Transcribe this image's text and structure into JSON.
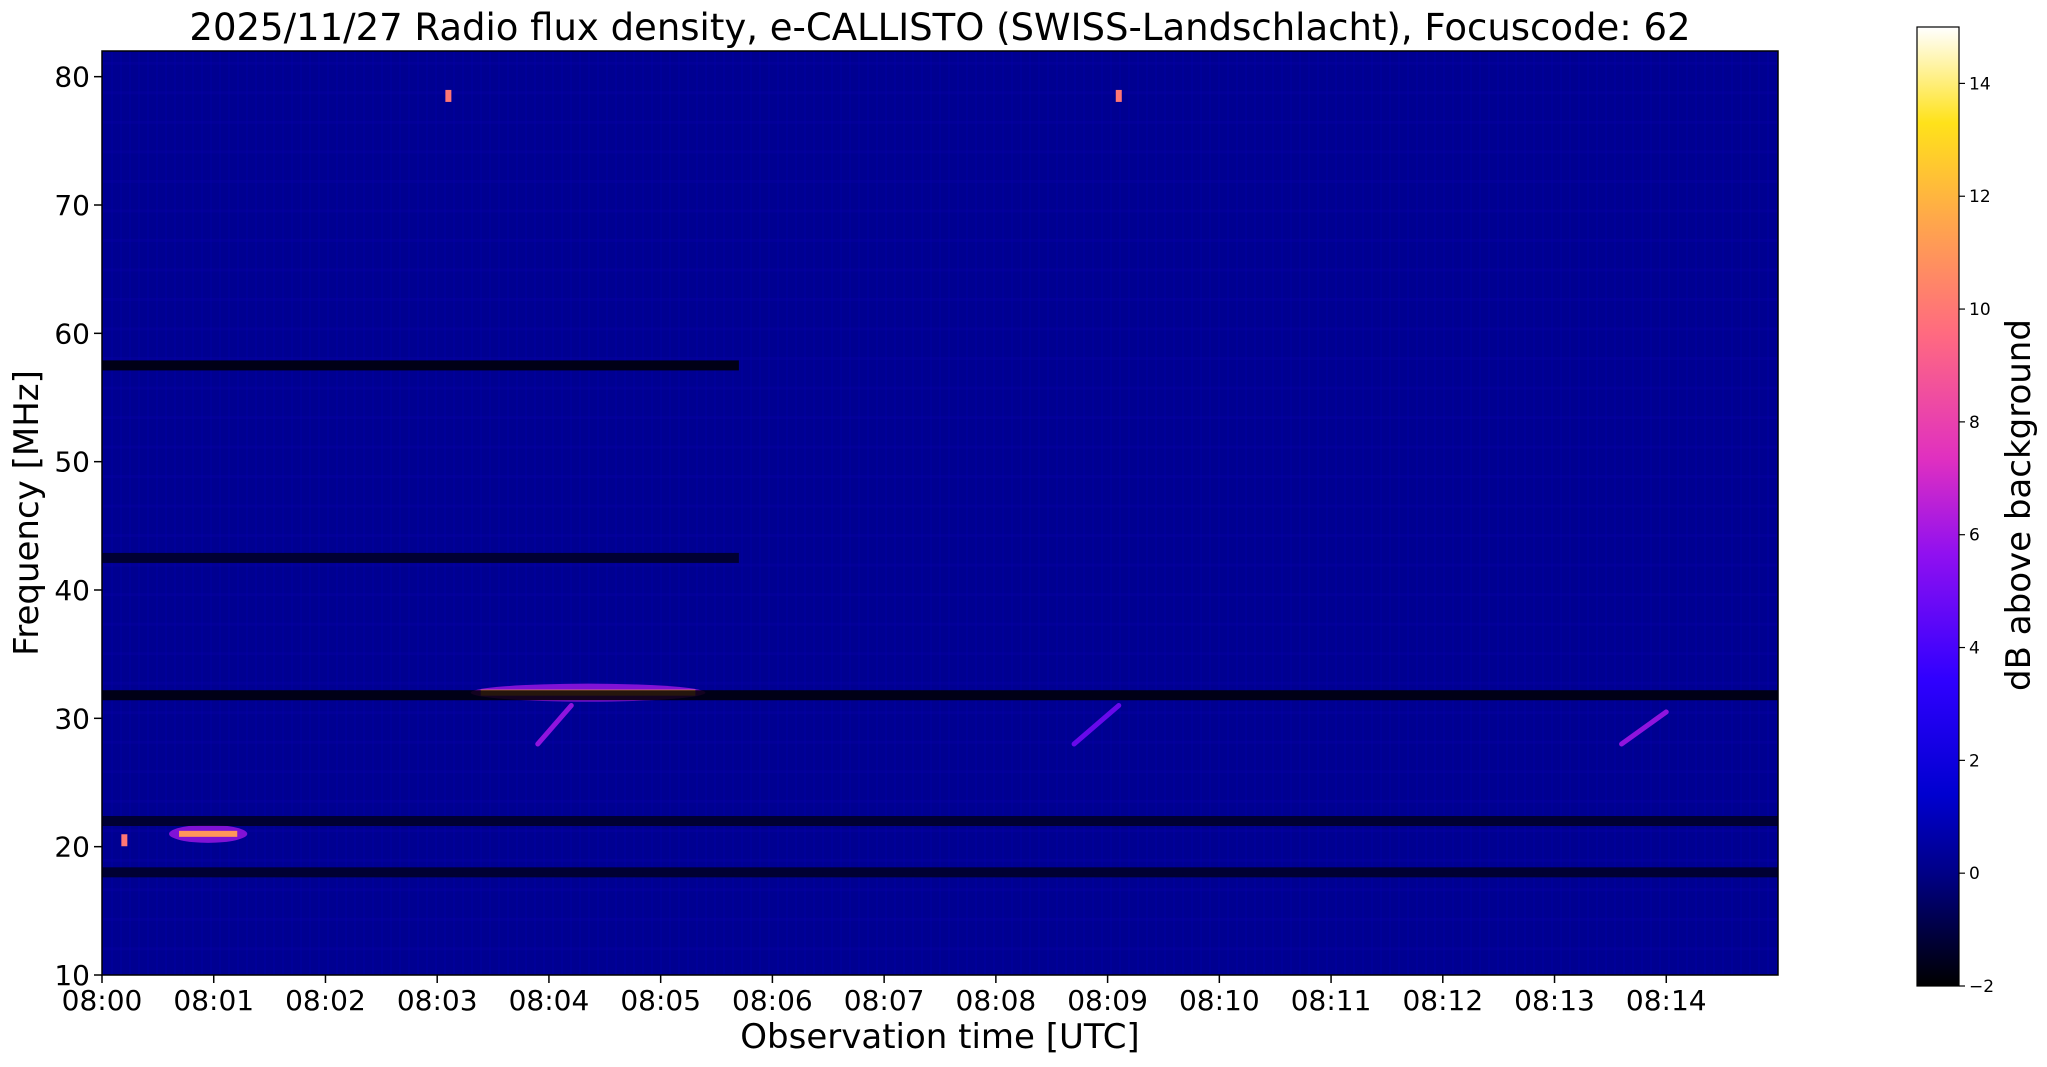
{
  "chart_data": {
    "type": "heatmap",
    "title": "2025/11/27  Radio flux density, e-CALLISTO (SWISS-Landschlacht), Focuscode: 62",
    "xlabel": "Observation time [UTC]",
    "ylabel": "Frequency [MHz]",
    "x_ticks": [
      "08:00",
      "08:01",
      "08:02",
      "08:03",
      "08:04",
      "08:05",
      "08:06",
      "08:07",
      "08:08",
      "08:09",
      "08:10",
      "08:11",
      "08:12",
      "08:13",
      "08:14"
    ],
    "x_range_minutes": [
      0,
      15
    ],
    "y_ticks": [
      "10",
      "20",
      "30",
      "40",
      "50",
      "60",
      "70",
      "80"
    ],
    "ylim": [
      10,
      82
    ],
    "colorbar": {
      "label": "dB above background",
      "ticks": [
        "−2",
        "0",
        "2",
        "4",
        "6",
        "8",
        "10",
        "12",
        "14"
      ],
      "range": [
        -2,
        15
      ],
      "colormap": "gnuplot2"
    },
    "background_level_db": 0,
    "features": [
      {
        "kind": "band",
        "freq_mhz": 32,
        "t_start_min": 3.3,
        "t_end_min": 5.4,
        "peak_db": 11,
        "desc_type": "bright"
      },
      {
        "kind": "band",
        "freq_mhz": 21,
        "t_start_min": 0.6,
        "t_end_min": 1.3,
        "peak_db": 11,
        "desc_type": "bright"
      },
      {
        "kind": "spot",
        "freq_mhz": 20.5,
        "t_min": 0.2,
        "peak_db": 10
      },
      {
        "kind": "spot",
        "freq_mhz": 78.5,
        "t_min": 3.1,
        "peak_db": 10
      },
      {
        "kind": "spot",
        "freq_mhz": 78.5,
        "t_min": 9.1,
        "peak_db": 10
      },
      {
        "kind": "drift",
        "t_start_min": 3.9,
        "t_end_min": 4.2,
        "f_start_mhz": 28,
        "f_end_mhz": 31,
        "peak_db": 6
      },
      {
        "kind": "drift",
        "t_start_min": 8.7,
        "t_end_min": 9.1,
        "f_start_mhz": 28,
        "f_end_mhz": 31,
        "peak_db": 5
      },
      {
        "kind": "drift",
        "t_start_min": 13.6,
        "t_end_min": 14.0,
        "f_start_mhz": 28,
        "f_end_mhz": 30.5,
        "peak_db": 6
      },
      {
        "kind": "dark_band",
        "freq_mhz": 31.8,
        "db": -2
      },
      {
        "kind": "dark_band",
        "freq_mhz": 57.5,
        "t_end_min": 5.7,
        "db": -2
      },
      {
        "kind": "dark_band",
        "freq_mhz": 42.5,
        "t_end_min": 5.7,
        "db": -1.5
      },
      {
        "kind": "dark_band",
        "freq_mhz": 22,
        "db": -1.5
      },
      {
        "kind": "dark_band",
        "freq_mhz": 18,
        "db": -1.5
      }
    ]
  }
}
